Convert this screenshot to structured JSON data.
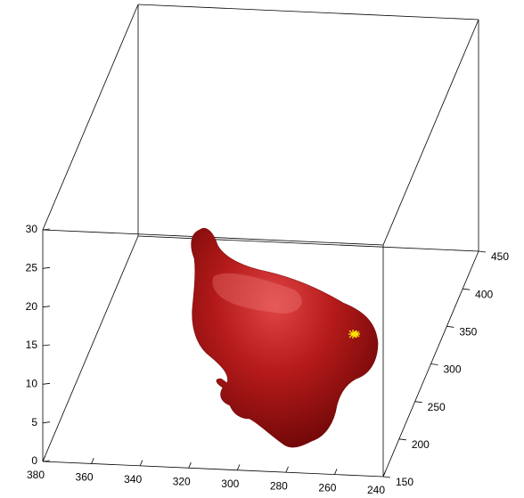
{
  "chart_data": {
    "type": "surface",
    "xlim": [
      380,
      240
    ],
    "xticks": [
      380,
      360,
      340,
      320,
      300,
      280,
      260,
      240
    ],
    "ylim": [
      150,
      450
    ],
    "yticks": [
      150,
      200,
      250,
      300,
      350,
      400,
      450
    ],
    "zlim": [
      0,
      30
    ],
    "zticks": [
      0,
      5,
      10,
      15,
      20,
      25,
      30
    ],
    "color": "#a01010"
  }
}
